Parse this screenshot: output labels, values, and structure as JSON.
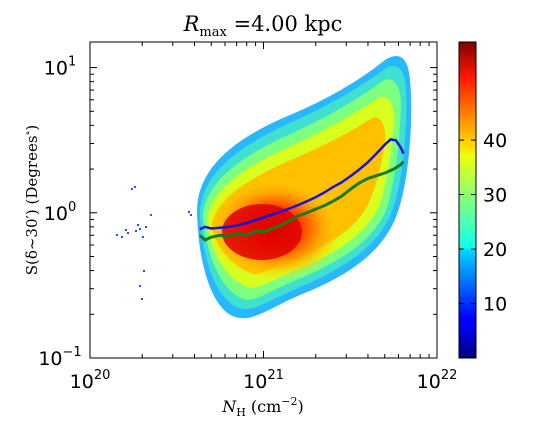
{
  "chart_data": {
    "type": "heatmap",
    "title": "R",
    "title_sub": "max",
    "title_value": " =4.00 kpc",
    "xlabel": {
      "var": "N",
      "sub": "H",
      "unit_open": " (cm",
      "unit_exp": "−2",
      "unit_close": ")"
    },
    "ylabel": {
      "text_pre": "S(δ~30′) (Degrees",
      "sup": "∘",
      "text_post": ")"
    },
    "x_scale": "log",
    "y_scale": "log",
    "xlim": [
      1e+20,
      1e+22
    ],
    "ylim": [
      0.1,
      15
    ],
    "x_ticks": [
      {
        "value": 1e+20,
        "base": "10",
        "exp": "20"
      },
      {
        "value": 1e+21,
        "base": "10",
        "exp": "21"
      },
      {
        "value": 1e+22,
        "base": "10",
        "exp": "22"
      }
    ],
    "y_ticks": [
      {
        "value": 0.1,
        "label": "10",
        "exp": "−1"
      },
      {
        "value": 1,
        "label": "10",
        "exp": "0"
      },
      {
        "value": 10,
        "label": "10",
        "exp": "1"
      }
    ],
    "grid": false,
    "colorbar": {
      "colormap": "jet",
      "range": [
        0,
        58
      ],
      "ticks": [
        10,
        20,
        30,
        40
      ],
      "tick_labels": [
        "10",
        "20",
        "30",
        "40"
      ]
    },
    "series": [
      {
        "style": "line",
        "color": "#1515d6",
        "points": [
          [
            4.3e+20,
            0.77
          ],
          [
            4.6e+20,
            0.8
          ],
          [
            5e+20,
            0.78
          ],
          [
            5.6e+20,
            0.79
          ],
          [
            6.3e+20,
            0.8
          ],
          [
            7.1e+20,
            0.82
          ],
          [
            8e+20,
            0.85
          ],
          [
            9e+20,
            0.89
          ],
          [
            1e+21,
            0.93
          ],
          [
            1.12e+21,
            0.97
          ],
          [
            1.26e+21,
            1.02
          ],
          [
            1.41e+21,
            1.07
          ],
          [
            1.58e+21,
            1.13
          ],
          [
            1.78e+21,
            1.2
          ],
          [
            2e+21,
            1.28
          ],
          [
            2.24e+21,
            1.38
          ],
          [
            2.51e+21,
            1.5
          ],
          [
            2.82e+21,
            1.62
          ],
          [
            3.16e+21,
            1.78
          ],
          [
            3.55e+21,
            1.98
          ],
          [
            3.98e+21,
            2.22
          ],
          [
            4.47e+21,
            2.55
          ],
          [
            5.01e+21,
            2.95
          ],
          [
            5.4e+21,
            3.2
          ],
          [
            5.8e+21,
            3.15
          ],
          [
            6.2e+21,
            2.8
          ],
          [
            6.4e+21,
            2.55
          ]
        ]
      },
      {
        "style": "line",
        "color": "#1a7a1a",
        "points": [
          [
            4.3e+20,
            0.7
          ],
          [
            4.6e+20,
            0.65
          ],
          [
            5e+20,
            0.68
          ],
          [
            5.6e+20,
            0.7
          ],
          [
            6.3e+20,
            0.69
          ],
          [
            7.1e+20,
            0.72
          ],
          [
            8e+20,
            0.7
          ],
          [
            9e+20,
            0.75
          ],
          [
            1e+21,
            0.74
          ],
          [
            1.12e+21,
            0.78
          ],
          [
            1.26e+21,
            0.82
          ],
          [
            1.41e+21,
            0.88
          ],
          [
            1.58e+21,
            0.95
          ],
          [
            1.78e+21,
            1.0
          ],
          [
            2e+21,
            1.06
          ],
          [
            2.24e+21,
            1.12
          ],
          [
            2.51e+21,
            1.2
          ],
          [
            2.82e+21,
            1.3
          ],
          [
            3.16e+21,
            1.45
          ],
          [
            3.55e+21,
            1.6
          ],
          [
            3.98e+21,
            1.72
          ],
          [
            4.47e+21,
            1.8
          ],
          [
            5.01e+21,
            1.88
          ],
          [
            5.62e+21,
            2.0
          ],
          [
            6.2e+21,
            2.15
          ],
          [
            6.4e+21,
            2.25
          ]
        ]
      }
    ]
  }
}
